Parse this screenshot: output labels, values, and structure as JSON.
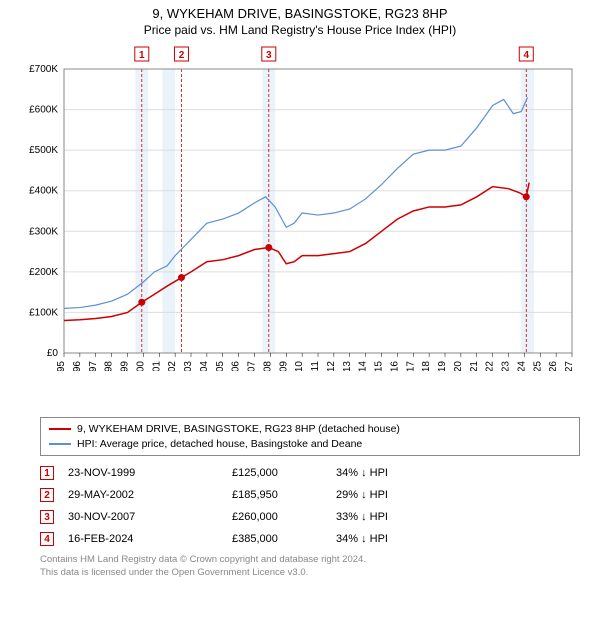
{
  "title_line1": "9, WYKEHAM DRIVE, BASINGSTOKE, RG23 8HP",
  "title_line2": "Price paid vs. HM Land Registry's House Price Index (HPI)",
  "chart": {
    "type": "line",
    "background_color": "#ffffff",
    "plot_border_color": "#888888",
    "grid_color": "#dddddd",
    "shade_color": "#eaf2fa",
    "x": {
      "min": 1995,
      "max": 2027,
      "tick_step": 1
    },
    "y": {
      "min": 0,
      "max": 700000,
      "tick_step": 100000,
      "label_prefix": "£",
      "labels": [
        "£0",
        "£100K",
        "£200K",
        "£300K",
        "£400K",
        "£500K",
        "£600K",
        "£700K"
      ]
    },
    "shaded_periods": [
      {
        "from": 1999.5,
        "to": 2000.3
      },
      {
        "from": 2001.2,
        "to": 2002.0
      },
      {
        "from": 2007.5,
        "to": 2008.3
      },
      {
        "from": 2023.8,
        "to": 2024.6
      }
    ],
    "series": [
      {
        "name": "price_paid",
        "label": "9, WYKEHAM DRIVE, BASINGSTOKE, RG23 8HP (detached house)",
        "color": "#cc0000",
        "line_width": 1.5,
        "points": [
          [
            1995.0,
            80000
          ],
          [
            1996.0,
            82000
          ],
          [
            1997.0,
            85000
          ],
          [
            1998.0,
            90000
          ],
          [
            1999.0,
            100000
          ],
          [
            1999.9,
            125000
          ],
          [
            2000.5,
            140000
          ],
          [
            2001.5,
            165000
          ],
          [
            2002.4,
            185950
          ],
          [
            2003.0,
            200000
          ],
          [
            2004.0,
            225000
          ],
          [
            2005.0,
            230000
          ],
          [
            2006.0,
            240000
          ],
          [
            2007.0,
            255000
          ],
          [
            2007.9,
            260000
          ],
          [
            2008.5,
            250000
          ],
          [
            2009.0,
            220000
          ],
          [
            2009.5,
            225000
          ],
          [
            2010.0,
            240000
          ],
          [
            2011.0,
            240000
          ],
          [
            2012.0,
            245000
          ],
          [
            2013.0,
            250000
          ],
          [
            2014.0,
            270000
          ],
          [
            2015.0,
            300000
          ],
          [
            2016.0,
            330000
          ],
          [
            2017.0,
            350000
          ],
          [
            2018.0,
            360000
          ],
          [
            2019.0,
            360000
          ],
          [
            2020.0,
            365000
          ],
          [
            2021.0,
            385000
          ],
          [
            2022.0,
            410000
          ],
          [
            2023.0,
            405000
          ],
          [
            2023.7,
            395000
          ],
          [
            2024.12,
            385000
          ],
          [
            2024.3,
            420000
          ]
        ],
        "markers": [
          {
            "n": 1,
            "x": 1999.9,
            "y": 125000
          },
          {
            "n": 2,
            "x": 2002.4,
            "y": 185950
          },
          {
            "n": 3,
            "x": 2007.9,
            "y": 260000
          },
          {
            "n": 4,
            "x": 2024.12,
            "y": 385000
          }
        ]
      },
      {
        "name": "hpi",
        "label": "HPI: Average price, detached house, Basingstoke and Deane",
        "color": "#5b8fd6",
        "line_width": 1.2,
        "points": [
          [
            1995.0,
            110000
          ],
          [
            1996.0,
            112000
          ],
          [
            1997.0,
            118000
          ],
          [
            1998.0,
            128000
          ],
          [
            1999.0,
            145000
          ],
          [
            2000.0,
            175000
          ],
          [
            2000.7,
            200000
          ],
          [
            2001.5,
            215000
          ],
          [
            2002.0,
            240000
          ],
          [
            2003.0,
            280000
          ],
          [
            2004.0,
            320000
          ],
          [
            2005.0,
            330000
          ],
          [
            2006.0,
            345000
          ],
          [
            2007.0,
            370000
          ],
          [
            2007.7,
            385000
          ],
          [
            2008.3,
            360000
          ],
          [
            2009.0,
            310000
          ],
          [
            2009.5,
            320000
          ],
          [
            2010.0,
            345000
          ],
          [
            2011.0,
            340000
          ],
          [
            2012.0,
            345000
          ],
          [
            2013.0,
            355000
          ],
          [
            2014.0,
            380000
          ],
          [
            2015.0,
            415000
          ],
          [
            2016.0,
            455000
          ],
          [
            2017.0,
            490000
          ],
          [
            2018.0,
            500000
          ],
          [
            2019.0,
            500000
          ],
          [
            2020.0,
            510000
          ],
          [
            2021.0,
            555000
          ],
          [
            2022.0,
            610000
          ],
          [
            2022.7,
            625000
          ],
          [
            2023.3,
            590000
          ],
          [
            2023.8,
            595000
          ],
          [
            2024.2,
            630000
          ]
        ]
      }
    ],
    "event_markers": [
      {
        "n": "1",
        "x": 1999.9
      },
      {
        "n": "2",
        "x": 2002.4
      },
      {
        "n": "3",
        "x": 2007.9
      },
      {
        "n": "4",
        "x": 2024.12
      }
    ]
  },
  "legend": {
    "items": [
      {
        "color": "#cc0000",
        "label": "9, WYKEHAM DRIVE, BASINGSTOKE, RG23 8HP (detached house)"
      },
      {
        "color": "#5b8fd6",
        "label": "HPI: Average price, detached house, Basingstoke and Deane"
      }
    ]
  },
  "events": [
    {
      "n": "1",
      "date": "23-NOV-1999",
      "price": "£125,000",
      "pct": "34% ↓ HPI"
    },
    {
      "n": "2",
      "date": "29-MAY-2002",
      "price": "£185,950",
      "pct": "29% ↓ HPI"
    },
    {
      "n": "3",
      "date": "30-NOV-2007",
      "price": "£260,000",
      "pct": "33% ↓ HPI"
    },
    {
      "n": "4",
      "date": "16-FEB-2024",
      "price": "£385,000",
      "pct": "34% ↓ HPI"
    }
  ],
  "attribution": {
    "line1": "Contains HM Land Registry data © Crown copyright and database right 2024.",
    "line2": "This data is licensed under the Open Government Licence v3.0."
  }
}
